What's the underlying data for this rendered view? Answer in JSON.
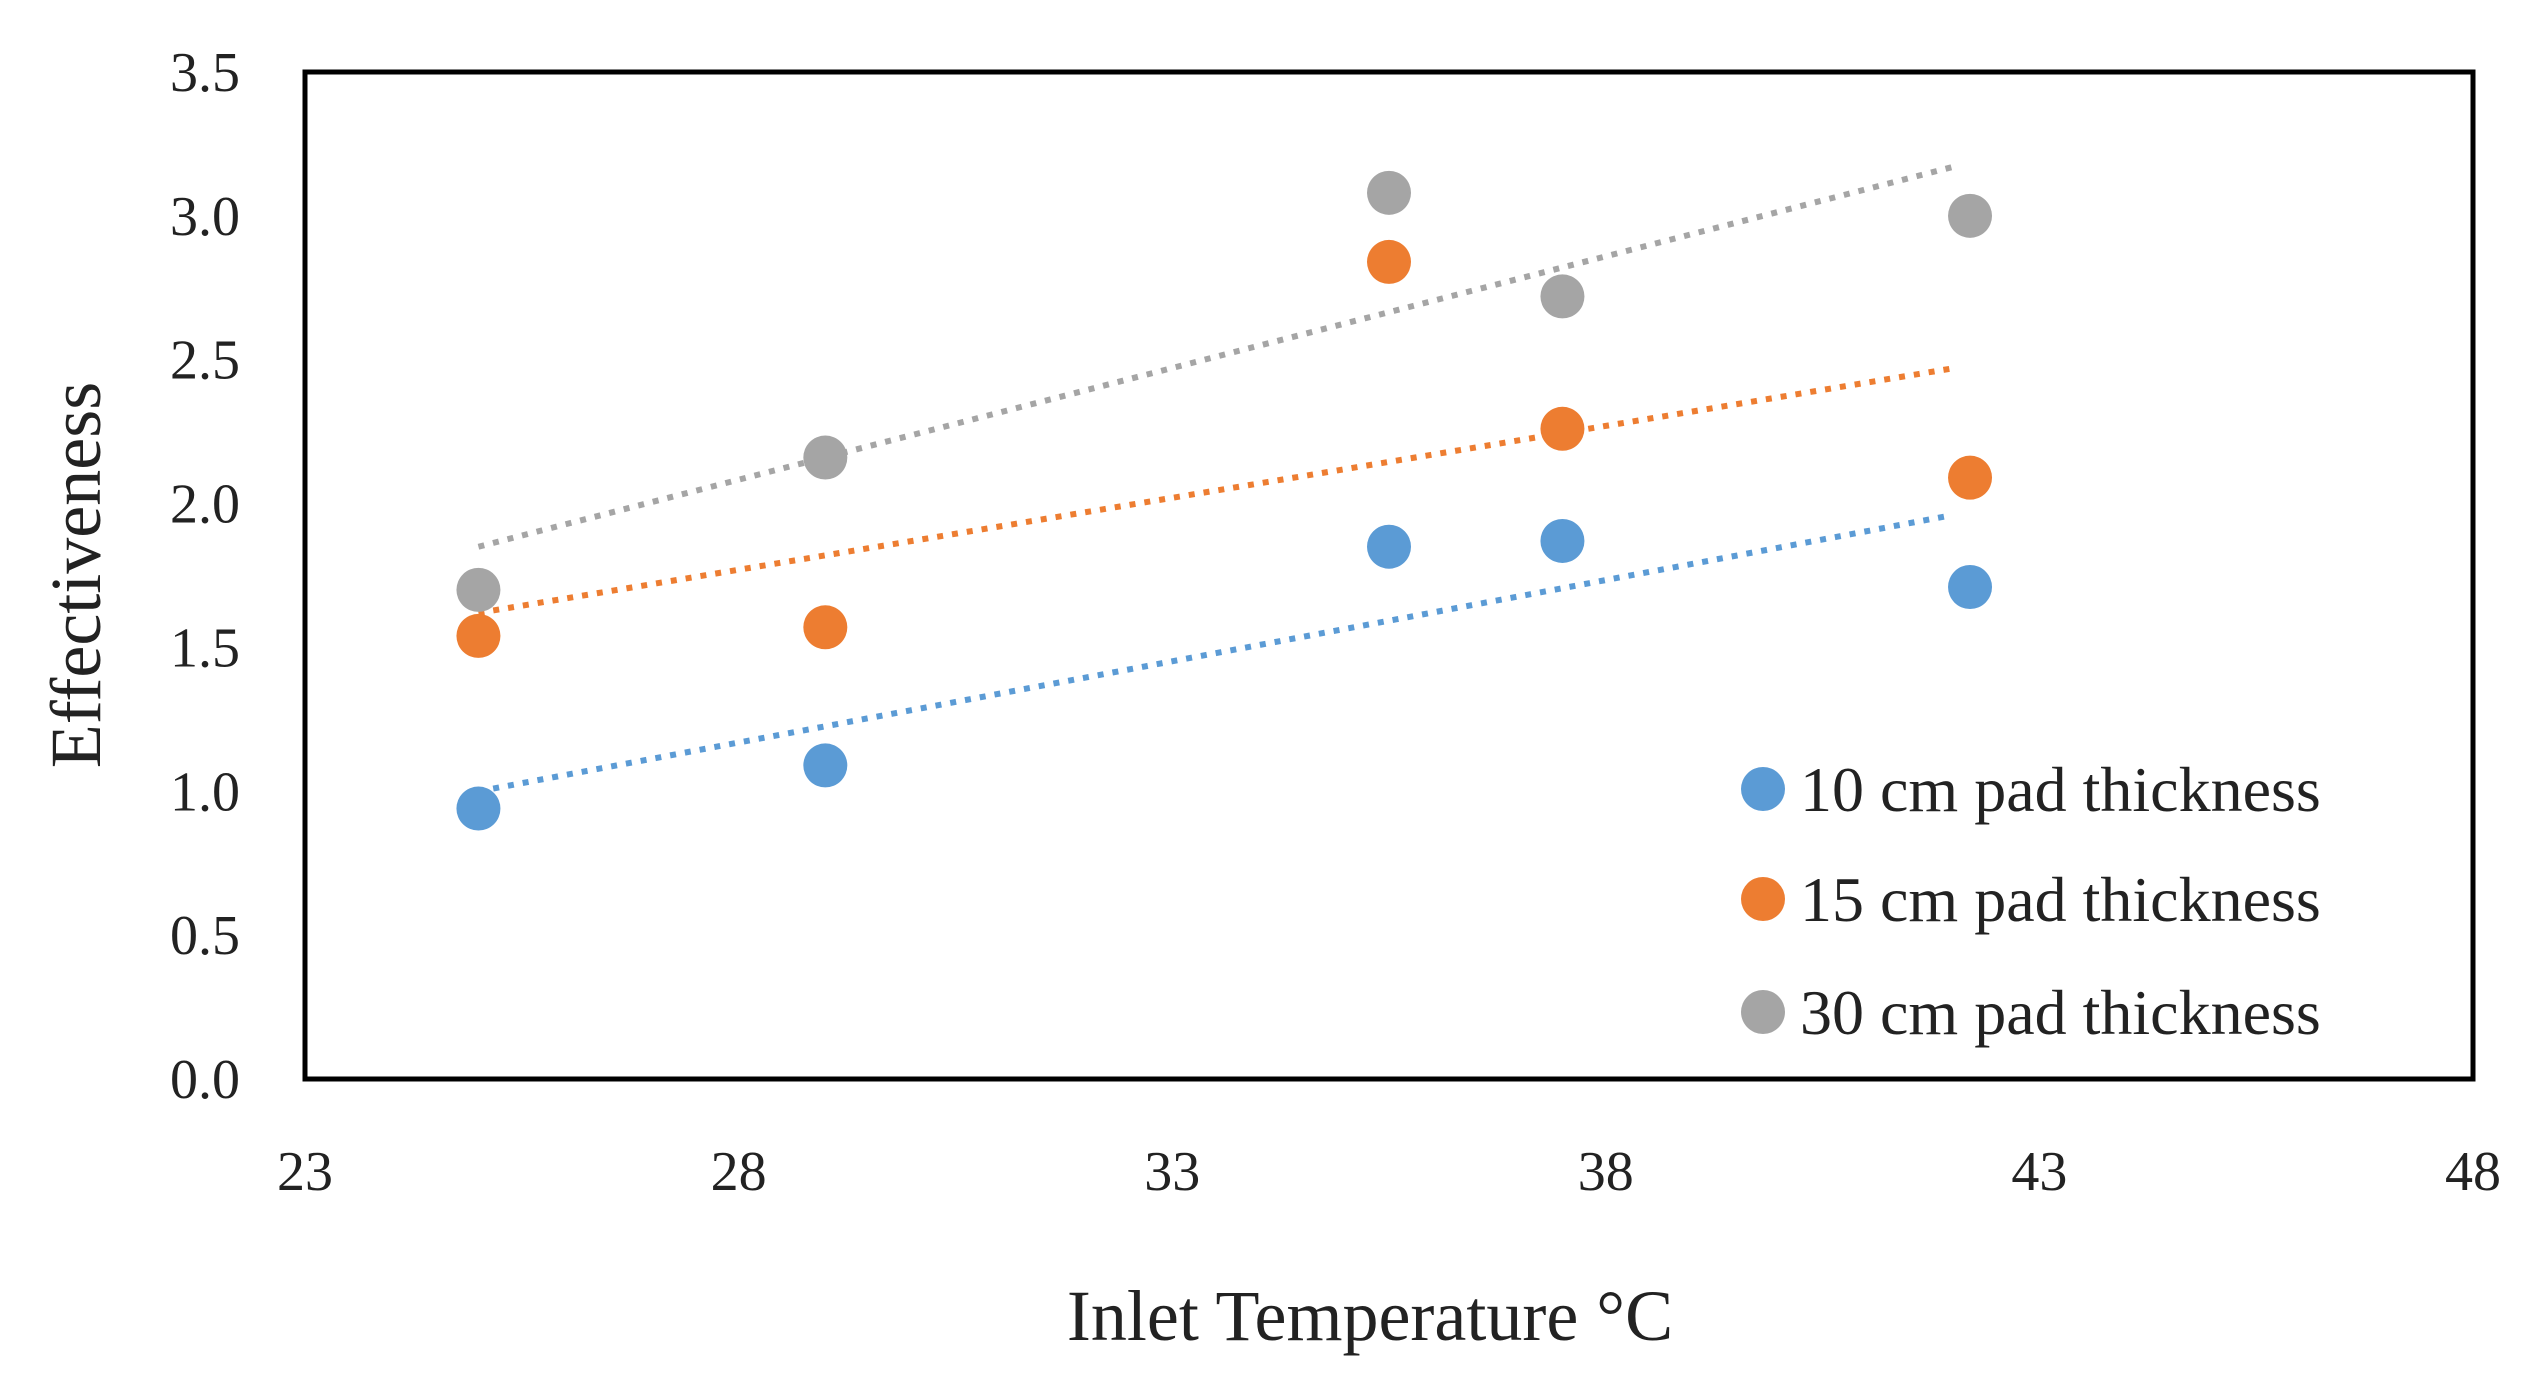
{
  "colors": {
    "plot_border": "#000000",
    "text": "#222222"
  },
  "chart_data": {
    "type": "scatter",
    "title": "",
    "xlabel": "Inlet Temperature °C",
    "ylabel": "Effectiveness",
    "xlim": [
      23,
      48
    ],
    "ylim": [
      0,
      3.5
    ],
    "x_ticks": [
      "23",
      "28",
      "33",
      "38",
      "43",
      "48"
    ],
    "y_ticks": [
      "0.0",
      "0.5",
      "1.0",
      "1.5",
      "2.0",
      "2.5",
      "3.0",
      "3.5"
    ],
    "grid": false,
    "legend_position": "bottom-right inside plot",
    "trendline": "linear, dotted",
    "series": [
      {
        "name": "10 cm pad thickness",
        "color": "#5B9BD5",
        "x": [
          25,
          29,
          35.5,
          37.5,
          42.2
        ],
        "y": [
          0.94,
          1.09,
          1.85,
          1.87,
          1.71
        ],
        "trend": {
          "x": [
            25,
            42
          ],
          "y": [
            1.0,
            1.96
          ]
        }
      },
      {
        "name": "15 cm pad thickness",
        "color": "#ED7D31",
        "x": [
          25,
          29,
          35.5,
          37.5,
          42.2
        ],
        "y": [
          1.54,
          1.57,
          2.84,
          2.26,
          2.09
        ],
        "trend": {
          "x": [
            25,
            42
          ],
          "y": [
            1.62,
            2.47
          ]
        }
      },
      {
        "name": "30 cm pad thickness",
        "color": "#A5A5A5",
        "x": [
          25,
          29,
          35.5,
          37.5,
          42.2
        ],
        "y": [
          1.7,
          2.16,
          3.08,
          2.72,
          3.0
        ],
        "trend": {
          "x": [
            25,
            42
          ],
          "y": [
            1.85,
            3.17
          ]
        }
      }
    ]
  }
}
